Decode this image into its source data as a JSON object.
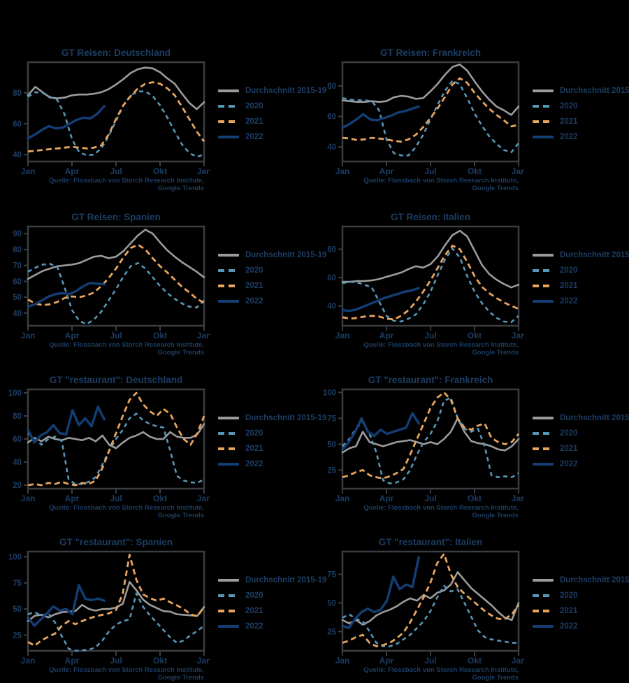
{
  "page": {
    "background": "#000000",
    "text_color": "#1c3d63",
    "frame_color": "#3a3e42"
  },
  "source": {
    "line1": "Quelle: Flossbach von Storch Research Institute,",
    "line2": "Google Trends"
  },
  "x_axis": {
    "labels": [
      "Jan",
      "Apr",
      "Jul",
      "Okt",
      "Jan"
    ],
    "month_positions": [
      0,
      3,
      6,
      9,
      12
    ],
    "domain": [
      0,
      12
    ]
  },
  "legend": {
    "position": "right",
    "items": [
      {
        "key": "durchschnitt",
        "label": "Durchschnitt 2015-19",
        "color": "#9b9b9b",
        "style": "solid",
        "dash": null,
        "width": 2.6
      },
      {
        "key": "2020",
        "label": "2020",
        "color": "#5796b6",
        "style": "dashed",
        "dash": "6 5",
        "width": 2.6
      },
      {
        "key": "2021",
        "label": "2021",
        "color": "#e7a55e",
        "style": "dashed",
        "dash": "8 5",
        "width": 2.8
      },
      {
        "key": "2022",
        "label": "2022",
        "color": "#143e73",
        "style": "solid",
        "dash": null,
        "width": 3.4
      }
    ]
  },
  "chart_data": [
    {
      "type": "line",
      "title": "GT Reisen: Deutschland",
      "ylim": [
        35.5,
        100
      ],
      "yticks": [
        40,
        60,
        80
      ],
      "grid": false,
      "series": [
        {
          "name": "Durchschnitt 2015-19",
          "x_start": 0,
          "x_end": 12,
          "values": [
            78.5,
            84,
            80.5,
            77,
            76.5,
            77,
            78.5,
            79,
            79,
            79.5,
            80.5,
            82.5,
            85.5,
            89,
            93,
            95.5,
            96.5,
            96,
            93.5,
            89.5,
            86,
            79.5,
            73.5,
            69.5,
            74
          ]
        },
        {
          "name": "2020",
          "x_start": 0,
          "x_end": 12,
          "values": [
            77.5,
            80.5,
            80,
            77.5,
            75.5,
            66,
            50,
            41.5,
            39.5,
            40,
            44,
            52,
            62,
            72,
            78.5,
            81,
            81,
            78,
            72,
            64,
            55,
            46.5,
            41,
            38.5,
            40
          ]
        },
        {
          "name": "2021",
          "x_start": 0,
          "x_end": 12,
          "values": [
            42,
            42.5,
            43,
            43.5,
            44,
            44.5,
            45,
            44.5,
            44,
            44.5,
            46,
            53,
            63,
            72,
            78,
            83,
            86,
            87,
            86,
            83,
            78.5,
            71,
            63,
            55,
            48.5
          ]
        },
        {
          "name": "2022",
          "x_start": 0,
          "x_end": 5.2,
          "values": [
            50.5,
            53,
            56,
            58.5,
            57,
            57.5,
            60,
            62.5,
            64,
            63.5,
            66.5,
            71.5
          ]
        }
      ]
    },
    {
      "type": "line",
      "title": "GT Reisen: Frankreich",
      "ylim": [
        30.5,
        95.5
      ],
      "yticks": [
        40,
        60,
        80
      ],
      "grid": false,
      "series": [
        {
          "name": "Durchschnitt 2015-19",
          "x_start": 0,
          "x_end": 12,
          "values": [
            70.5,
            70,
            69.5,
            69.5,
            70,
            69.5,
            70,
            72.5,
            73.5,
            73,
            71.5,
            72,
            76.5,
            81.5,
            87.5,
            92.5,
            94,
            90,
            83,
            76.5,
            71,
            66.5,
            64,
            61,
            66.5
          ]
        },
        {
          "name": "2020",
          "x_start": 0,
          "x_end": 12,
          "values": [
            72,
            71,
            70.5,
            70.5,
            70,
            64,
            45,
            36,
            34.5,
            34.5,
            40,
            48,
            58,
            68,
            77,
            83.5,
            81,
            72,
            62,
            54,
            47,
            42,
            38,
            36.5,
            42.5
          ]
        },
        {
          "name": "2021",
          "x_start": 0,
          "x_end": 12,
          "values": [
            46,
            45.5,
            44.5,
            45,
            46,
            45.5,
            45,
            44,
            43.5,
            45,
            48,
            53,
            59,
            65.5,
            73,
            81,
            85,
            82,
            75.5,
            70,
            65,
            61,
            57.5,
            53.5,
            54.5
          ]
        },
        {
          "name": "2022",
          "x_start": 0,
          "x_end": 5.2,
          "values": [
            52.5,
            55,
            58,
            61.5,
            58,
            57.5,
            59,
            60.5,
            62.5,
            63.5,
            65,
            66.5
          ]
        }
      ]
    },
    {
      "type": "line",
      "title": "GT Reisen: Spanien",
      "ylim": [
        32,
        94.5
      ],
      "yticks": [
        40,
        50,
        60,
        70,
        80,
        90
      ],
      "grid": false,
      "series": [
        {
          "name": "Durchschnitt 2015-19",
          "x_start": 0,
          "x_end": 12,
          "values": [
            61.5,
            64,
            66.5,
            68,
            69.5,
            70,
            70.5,
            71.5,
            73.5,
            75.5,
            76,
            74.5,
            75.5,
            79,
            84,
            89,
            92.5,
            90,
            84.5,
            79.5,
            75.5,
            72,
            69,
            66,
            62.5
          ]
        },
        {
          "name": "2020",
          "x_start": 0,
          "x_end": 12,
          "values": [
            66,
            68.5,
            70.5,
            71,
            69,
            56,
            42,
            35,
            33,
            36,
            41,
            48,
            55,
            63,
            69.5,
            71.5,
            68,
            62.5,
            57,
            52.5,
            49,
            46,
            44,
            43.5,
            48
          ]
        },
        {
          "name": "2021",
          "x_start": 0,
          "x_end": 12,
          "values": [
            48.5,
            46,
            45,
            45.5,
            47,
            49.5,
            50.5,
            50,
            51,
            53,
            57,
            62,
            68,
            75,
            81,
            83,
            80,
            74.5,
            69.5,
            65.5,
            61,
            56.5,
            53,
            49,
            46.5
          ]
        },
        {
          "name": "2022",
          "x_start": 0,
          "x_end": 5.2,
          "values": [
            44,
            45.5,
            48,
            50.5,
            52,
            52.5,
            52,
            54,
            57,
            59,
            58.5,
            58
          ]
        }
      ]
    },
    {
      "type": "line",
      "title": "GT Reisen: Italien",
      "ylim": [
        26,
        96
      ],
      "yticks": [
        40,
        60,
        80
      ],
      "grid": false,
      "series": [
        {
          "name": "Durchschnitt 2015-19",
          "x_start": 0,
          "x_end": 12,
          "values": [
            57,
            57,
            57.5,
            57.5,
            58,
            59,
            60.5,
            62,
            63.5,
            66,
            68,
            67,
            69.5,
            75,
            83,
            90,
            93,
            89,
            79,
            69,
            62.5,
            58.5,
            55.5,
            53,
            55
          ]
        },
        {
          "name": "2020",
          "x_start": 0,
          "x_end": 12,
          "values": [
            56,
            57,
            56.5,
            55,
            53,
            43,
            33,
            29.5,
            29,
            31,
            34,
            41,
            50,
            62,
            73,
            80.5,
            74,
            61,
            50,
            42,
            36,
            31.5,
            29,
            28.5,
            33
          ]
        },
        {
          "name": "2021",
          "x_start": 0,
          "x_end": 12,
          "values": [
            32,
            31,
            31.5,
            32.5,
            33,
            32.5,
            31,
            30.5,
            33,
            37,
            43,
            50,
            58,
            67,
            76,
            82.5,
            80,
            71,
            61,
            53.5,
            49,
            45.5,
            42.5,
            40,
            38
          ]
        },
        {
          "name": "2022",
          "x_start": 0,
          "x_end": 5.2,
          "values": [
            37,
            36.5,
            37.5,
            39.5,
            41.5,
            43.5,
            45.5,
            47,
            48.5,
            50,
            51,
            52.5
          ]
        }
      ]
    },
    {
      "type": "line",
      "title": "GT \"restaurant\": Deutschland",
      "ylim": [
        17,
        103
      ],
      "yticks": [
        20,
        40,
        60,
        80,
        100
      ],
      "grid": false,
      "series": [
        {
          "name": "Durchschnitt 2015-19",
          "x_start": 0,
          "x_end": 12,
          "values": [
            57,
            61,
            58,
            62,
            60,
            59,
            61,
            60,
            59,
            61,
            58,
            63,
            55,
            52,
            57,
            61,
            63,
            66,
            62,
            60,
            60,
            66,
            62,
            61,
            61,
            64,
            73
          ]
        },
        {
          "name": "2020",
          "x_start": 0,
          "x_end": 12,
          "values": [
            65,
            61,
            55,
            60,
            62,
            58,
            25,
            21,
            21,
            23,
            27,
            38,
            50,
            60,
            68,
            78,
            82,
            76,
            73,
            71,
            70,
            50,
            28,
            24,
            22.5,
            22,
            25
          ]
        },
        {
          "name": "2021",
          "x_start": 0,
          "x_end": 12,
          "values": [
            20,
            21,
            20,
            22,
            21,
            23,
            21,
            20,
            22,
            21,
            24,
            35,
            50,
            65,
            80,
            94,
            100,
            90,
            84,
            80,
            86,
            82,
            70,
            60,
            55,
            65,
            80
          ]
        },
        {
          "name": "2022",
          "x_start": 0,
          "x_end": 5.2,
          "values": [
            68,
            57,
            63,
            66,
            72,
            65,
            64,
            85,
            72,
            78,
            71,
            88,
            77
          ]
        }
      ]
    },
    {
      "type": "line",
      "title": "GT \"restaurant\": Frankreich",
      "ylim": [
        7,
        103
      ],
      "yticks": [
        25,
        50,
        75,
        100
      ],
      "grid": false,
      "series": [
        {
          "name": "Durchschnitt 2015-19",
          "x_start": 0,
          "x_end": 12,
          "values": [
            42,
            46,
            48,
            62,
            52,
            50,
            48,
            50,
            52,
            53,
            54,
            52,
            50,
            52,
            50,
            55,
            62,
            75,
            62,
            53,
            51,
            50,
            48,
            45,
            44,
            48,
            55
          ]
        },
        {
          "name": "2020",
          "x_start": 0,
          "x_end": 12,
          "values": [
            48,
            55,
            65,
            72,
            60,
            42,
            15,
            12,
            13,
            16,
            25,
            40,
            52,
            60,
            72,
            92,
            95,
            75,
            65,
            62,
            65,
            48,
            20,
            18,
            19,
            18,
            22
          ]
        },
        {
          "name": "2021",
          "x_start": 0,
          "x_end": 12,
          "values": [
            18,
            20,
            23,
            25,
            20,
            18,
            17,
            19,
            22,
            26,
            40,
            55,
            70,
            85,
            95,
            100,
            93,
            75,
            66,
            64,
            68,
            70,
            56,
            52,
            50,
            52,
            60
          ]
        },
        {
          "name": "2022",
          "x_start": 0,
          "x_end": 5.2,
          "values": [
            45,
            52,
            62,
            75,
            62,
            58,
            64,
            60,
            62,
            64,
            66,
            80,
            70
          ]
        }
      ]
    },
    {
      "type": "line",
      "title": "GT \"restaurant\": Spanien",
      "ylim": [
        10,
        105
      ],
      "yticks": [
        25,
        50,
        75,
        100
      ],
      "grid": false,
      "series": [
        {
          "name": "Durchschnitt 2015-19",
          "x_start": 0,
          "x_end": 12,
          "values": [
            38.5,
            43.5,
            44.5,
            42,
            45,
            47,
            47.5,
            48,
            54,
            50,
            48.5,
            50,
            50,
            51.5,
            55,
            76,
            68,
            59,
            54,
            51,
            48,
            47.5,
            45,
            44.5,
            44,
            43.5,
            52
          ]
        },
        {
          "name": "2020",
          "x_start": 0,
          "x_end": 12,
          "values": [
            45,
            47,
            43.5,
            46,
            37,
            24,
            12,
            10,
            10.5,
            11,
            13.5,
            20,
            29,
            35,
            38.5,
            40,
            65,
            52,
            44,
            37,
            30,
            23,
            17.5,
            20,
            25,
            29,
            34
          ]
        },
        {
          "name": "2021",
          "x_start": 0,
          "x_end": 12,
          "values": [
            18.5,
            15,
            20,
            23.5,
            26.5,
            34,
            38.5,
            35.5,
            38.5,
            41,
            43,
            44.5,
            46,
            49,
            65,
            102,
            78,
            64,
            60.5,
            58,
            60,
            56.5,
            53.5,
            50,
            45,
            43,
            52
          ]
        },
        {
          "name": "2022",
          "x_start": 0,
          "x_end": 5.2,
          "values": [
            42,
            34,
            40,
            46,
            52.5,
            48.5,
            50,
            45,
            73,
            60,
            58.5,
            60,
            58
          ]
        }
      ]
    },
    {
      "type": "line",
      "title": "GT \"restaurant\": Italien",
      "ylim": [
        8,
        95
      ],
      "yticks": [
        25,
        50,
        75
      ],
      "grid": false,
      "series": [
        {
          "name": "Durchschnitt 2015-19",
          "x_start": 0,
          "x_end": 12,
          "values": [
            35,
            32,
            35,
            31,
            34,
            39,
            42,
            44,
            47,
            51,
            54,
            52,
            57,
            54,
            59,
            61,
            66,
            77,
            70,
            63,
            58,
            53,
            48,
            42,
            37,
            35,
            50
          ]
        },
        {
          "name": "2020",
          "x_start": 0,
          "x_end": 12,
          "values": [
            37,
            40,
            36,
            34,
            25,
            15,
            12,
            12,
            14,
            18,
            22,
            28,
            34,
            43,
            55,
            65,
            60,
            62,
            50,
            38,
            26,
            20,
            18,
            17,
            16,
            15,
            15
          ]
        },
        {
          "name": "2021",
          "x_start": 0,
          "x_end": 12,
          "values": [
            15,
            17,
            20,
            22,
            15,
            12,
            13,
            15,
            19,
            24,
            33,
            44,
            55,
            68,
            85,
            93,
            75,
            64,
            58,
            53,
            48,
            43,
            39,
            36,
            36,
            40,
            48
          ]
        },
        {
          "name": "2022",
          "x_start": 0,
          "x_end": 5.2,
          "values": [
            30,
            28,
            36,
            42,
            45,
            42,
            44,
            52,
            73,
            62,
            66,
            64,
            90
          ]
        }
      ]
    }
  ]
}
